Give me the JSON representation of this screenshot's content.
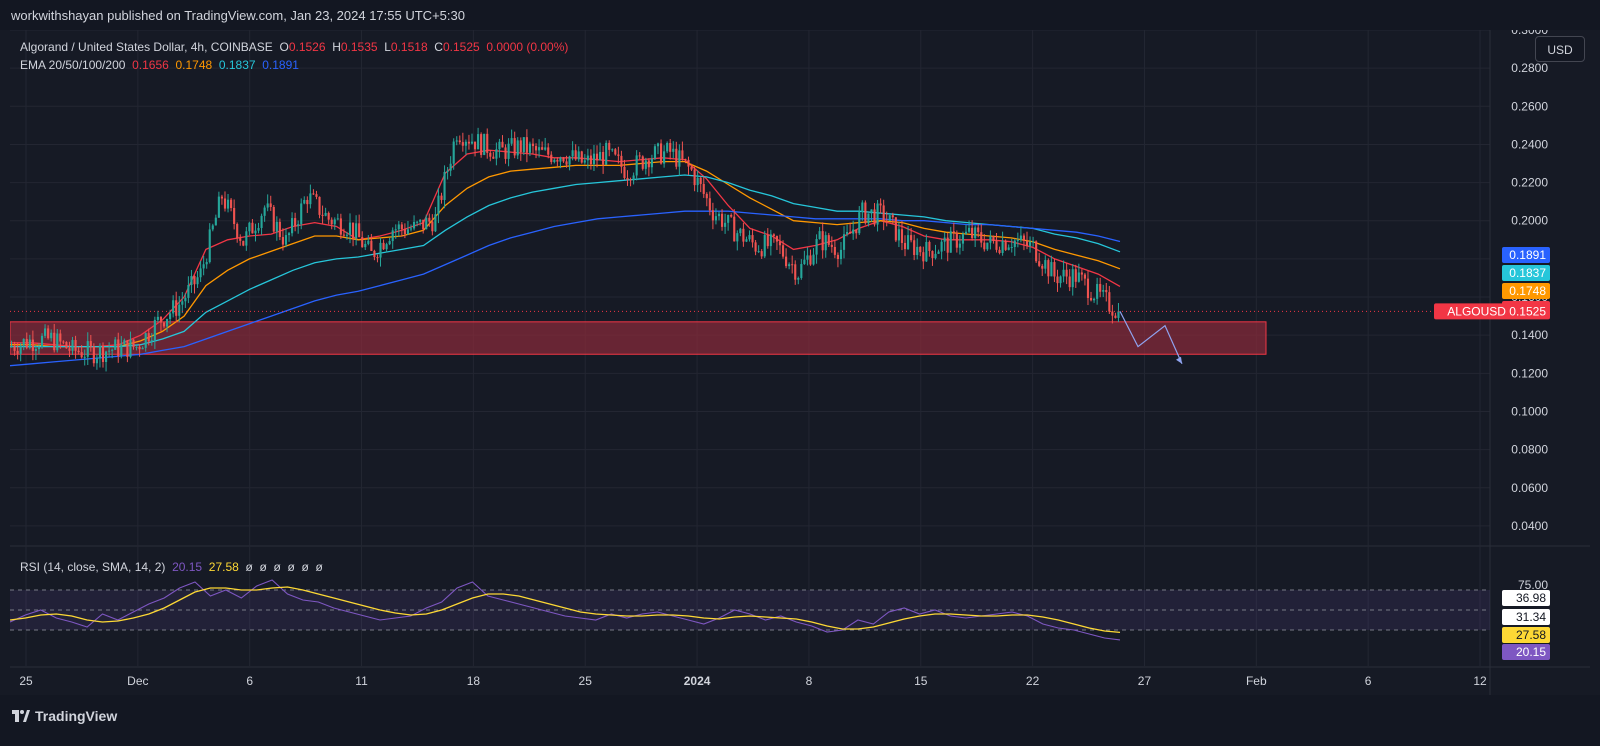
{
  "header": {
    "publish_text": "workwithshayan published on TradingView.com, Jan 23, 2024 17:55 UTC+5:30"
  },
  "legend": {
    "symbol": "Algorand / United States Dollar, 4h, COINBASE",
    "o_label": "O",
    "o_val": "0.1526",
    "h_label": "H",
    "h_val": "0.1535",
    "l_label": "L",
    "l_val": "0.1518",
    "c_label": "C",
    "c_val": "0.1525",
    "change": "0.0000 (0.00%)",
    "ema_label": "EMA 20/50/100/200",
    "ema20": "0.1656",
    "ema50": "0.1748",
    "ema100": "0.1837",
    "ema200": "0.1891",
    "rsi_label": "RSI (14, close, SMA, 14, 2)",
    "rsi_val": "20.15",
    "rsi_sma": "27.58",
    "rsi_na": [
      "ø",
      "ø",
      "ø",
      "ø",
      "ø",
      "ø"
    ]
  },
  "currency_button": "USD",
  "footer": {
    "brand": "TradingView"
  },
  "colors": {
    "up": "#26a69a",
    "down": "#ef5350",
    "ema20": "#f23645",
    "ema50": "#ff9800",
    "ema100": "#26c6da",
    "ema200": "#2962ff",
    "rsi": "#7e57c2",
    "rsi_ma": "#fdd835",
    "zone": "#8b2b3a"
  },
  "chart_data": {
    "type": "candlestick",
    "symbol": "ALGOUSD",
    "timeframe": "4h",
    "exchange": "COINBASE",
    "y_axis": {
      "ticks": [
        "0.3000",
        "0.2800",
        "0.2600",
        "0.2400",
        "0.2200",
        "0.2000",
        "0.1800",
        "0.1600",
        "0.1400",
        "0.1200",
        "0.1000",
        "0.0800",
        "0.0600",
        "0.0400"
      ],
      "ylim": [
        0.03,
        0.3
      ]
    },
    "x_axis": {
      "labels": [
        "25",
        "Dec",
        "6",
        "11",
        "18",
        "25",
        "2024",
        "8",
        "15",
        "22",
        "27",
        "Feb",
        "6",
        "12"
      ]
    },
    "last_price": {
      "label": "ALGOUSD",
      "value": "0.1525"
    },
    "price_tags": [
      {
        "name": "EMA 200",
        "value": "0.1891",
        "color": "#2962ff"
      },
      {
        "name": "EMA 100",
        "value": "0.1837",
        "color": "#26c6da"
      },
      {
        "name": "EMA 50",
        "value": "0.1748",
        "color": "#ff9800"
      },
      {
        "name": "EMA 20",
        "value": "0.1656",
        "color": "#f23645"
      }
    ],
    "price_path": [
      [
        0.134,
        0.137
      ],
      [
        0.137,
        0.138
      ],
      [
        0.138,
        0.132
      ],
      [
        0.132,
        0.131
      ],
      [
        0.131,
        0.133
      ],
      [
        0.133,
        0.134
      ],
      [
        0.134,
        0.147
      ],
      [
        0.147,
        0.156
      ],
      [
        0.156,
        0.172
      ],
      [
        0.172,
        0.213
      ],
      [
        0.213,
        0.189
      ],
      [
        0.189,
        0.207
      ],
      [
        0.207,
        0.189
      ],
      [
        0.189,
        0.213
      ],
      [
        0.213,
        0.201
      ],
      [
        0.201,
        0.197
      ],
      [
        0.197,
        0.182
      ],
      [
        0.182,
        0.196
      ],
      [
        0.196,
        0.196
      ],
      [
        0.196,
        0.201
      ],
      [
        0.201,
        0.247
      ],
      [
        0.247,
        0.241
      ],
      [
        0.241,
        0.236
      ],
      [
        0.236,
        0.239
      ],
      [
        0.239,
        0.235
      ],
      [
        0.235,
        0.235
      ],
      [
        0.235,
        0.23
      ],
      [
        0.23,
        0.235
      ],
      [
        0.235,
        0.226
      ],
      [
        0.226,
        0.234
      ],
      [
        0.234,
        0.236
      ],
      [
        0.236,
        0.226
      ],
      [
        0.226,
        0.205
      ],
      [
        0.205,
        0.195
      ],
      [
        0.195,
        0.187
      ],
      [
        0.187,
        0.187
      ],
      [
        0.187,
        0.173
      ],
      [
        0.173,
        0.19
      ],
      [
        0.19,
        0.185
      ],
      [
        0.185,
        0.204
      ],
      [
        0.204,
        0.203
      ],
      [
        0.203,
        0.188
      ],
      [
        0.188,
        0.184
      ],
      [
        0.184,
        0.188
      ],
      [
        0.188,
        0.193
      ],
      [
        0.193,
        0.188
      ],
      [
        0.188,
        0.19
      ],
      [
        0.19,
        0.186
      ],
      [
        0.186,
        0.171
      ],
      [
        0.171,
        0.171
      ],
      [
        0.171,
        0.161
      ],
      [
        0.161,
        0.1525
      ]
    ],
    "ema_series": [
      {
        "name": "EMA 20",
        "color": "#f23645",
        "values": [
          0.136,
          0.136,
          0.135,
          0.134,
          0.134,
          0.135,
          0.14,
          0.148,
          0.16,
          0.185,
          0.19,
          0.192,
          0.193,
          0.197,
          0.199,
          0.197,
          0.19,
          0.192,
          0.195,
          0.199,
          0.225,
          0.235,
          0.237,
          0.236,
          0.235,
          0.233,
          0.233,
          0.232,
          0.231,
          0.232,
          0.233,
          0.232,
          0.222,
          0.208,
          0.196,
          0.192,
          0.185,
          0.187,
          0.19,
          0.196,
          0.2,
          0.197,
          0.192,
          0.19,
          0.19,
          0.19,
          0.189,
          0.186,
          0.18,
          0.176,
          0.172,
          0.1656
        ]
      },
      {
        "name": "EMA 50",
        "color": "#ff9800",
        "values": [
          0.135,
          0.135,
          0.134,
          0.134,
          0.134,
          0.134,
          0.137,
          0.142,
          0.15,
          0.166,
          0.174,
          0.18,
          0.184,
          0.188,
          0.192,
          0.192,
          0.19,
          0.191,
          0.192,
          0.195,
          0.208,
          0.217,
          0.223,
          0.226,
          0.227,
          0.228,
          0.229,
          0.229,
          0.229,
          0.23,
          0.231,
          0.231,
          0.226,
          0.219,
          0.212,
          0.206,
          0.2,
          0.199,
          0.198,
          0.199,
          0.2,
          0.199,
          0.196,
          0.194,
          0.193,
          0.192,
          0.191,
          0.189,
          0.185,
          0.182,
          0.179,
          0.1748
        ]
      },
      {
        "name": "EMA 100",
        "color": "#26c6da",
        "values": [
          0.134,
          0.134,
          0.134,
          0.134,
          0.134,
          0.134,
          0.135,
          0.138,
          0.142,
          0.152,
          0.158,
          0.164,
          0.169,
          0.174,
          0.178,
          0.18,
          0.181,
          0.183,
          0.185,
          0.187,
          0.195,
          0.202,
          0.208,
          0.212,
          0.215,
          0.217,
          0.219,
          0.22,
          0.221,
          0.222,
          0.223,
          0.224,
          0.223,
          0.22,
          0.216,
          0.213,
          0.209,
          0.207,
          0.205,
          0.205,
          0.204,
          0.203,
          0.202,
          0.2,
          0.199,
          0.198,
          0.197,
          0.196,
          0.193,
          0.191,
          0.188,
          0.1837
        ]
      },
      {
        "name": "EMA 200",
        "color": "#2962ff",
        "values": [
          0.124,
          0.125,
          0.126,
          0.127,
          0.128,
          0.129,
          0.13,
          0.132,
          0.134,
          0.138,
          0.142,
          0.146,
          0.15,
          0.154,
          0.158,
          0.161,
          0.163,
          0.166,
          0.169,
          0.172,
          0.177,
          0.182,
          0.187,
          0.191,
          0.194,
          0.197,
          0.199,
          0.201,
          0.202,
          0.203,
          0.204,
          0.205,
          0.205,
          0.205,
          0.204,
          0.203,
          0.202,
          0.201,
          0.201,
          0.201,
          0.201,
          0.2,
          0.2,
          0.199,
          0.198,
          0.198,
          0.197,
          0.196,
          0.195,
          0.194,
          0.192,
          0.1891
        ]
      }
    ],
    "support_zone": {
      "from": 0.13,
      "to": 0.147
    },
    "projection": [
      [
        0.1525,
        0.157
      ],
      [
        0.134,
        0.159
      ],
      [
        0.145,
        0.163
      ],
      [
        0.125,
        0.166
      ]
    ],
    "rsi": {
      "levels": [
        "75.00",
        "36.98",
        "31.34",
        "27.58",
        "20.15"
      ],
      "ylim": [
        0,
        100
      ],
      "band": [
        30,
        70
      ],
      "values": [
        38,
        45,
        50,
        42,
        38,
        33,
        46,
        40,
        48,
        56,
        62,
        72,
        78,
        64,
        70,
        62,
        74,
        80,
        66,
        60,
        58,
        52,
        48,
        44,
        40,
        42,
        44,
        52,
        58,
        72,
        78,
        64,
        60,
        56,
        52,
        48,
        44,
        42,
        40,
        46,
        42,
        46,
        48,
        44,
        40,
        36,
        42,
        50,
        46,
        40,
        44,
        38,
        34,
        28,
        30,
        40,
        36,
        48,
        52,
        46,
        50,
        44,
        42,
        44,
        46,
        48,
        44,
        36,
        32,
        30,
        26,
        22,
        20.15
      ],
      "ma_values": [
        40,
        42,
        45,
        46,
        44,
        40,
        38,
        39,
        42,
        46,
        52,
        60,
        68,
        72,
        72,
        70,
        70,
        72,
        73,
        70,
        66,
        62,
        58,
        54,
        50,
        47,
        45,
        46,
        50,
        56,
        62,
        66,
        66,
        64,
        60,
        56,
        52,
        48,
        46,
        45,
        44,
        44,
        45,
        45,
        44,
        42,
        41,
        43,
        44,
        43,
        42,
        41,
        38,
        34,
        31,
        31,
        33,
        37,
        41,
        44,
        46,
        46,
        45,
        44,
        44,
        45,
        45,
        43,
        40,
        36,
        32,
        29,
        27.58
      ]
    }
  }
}
